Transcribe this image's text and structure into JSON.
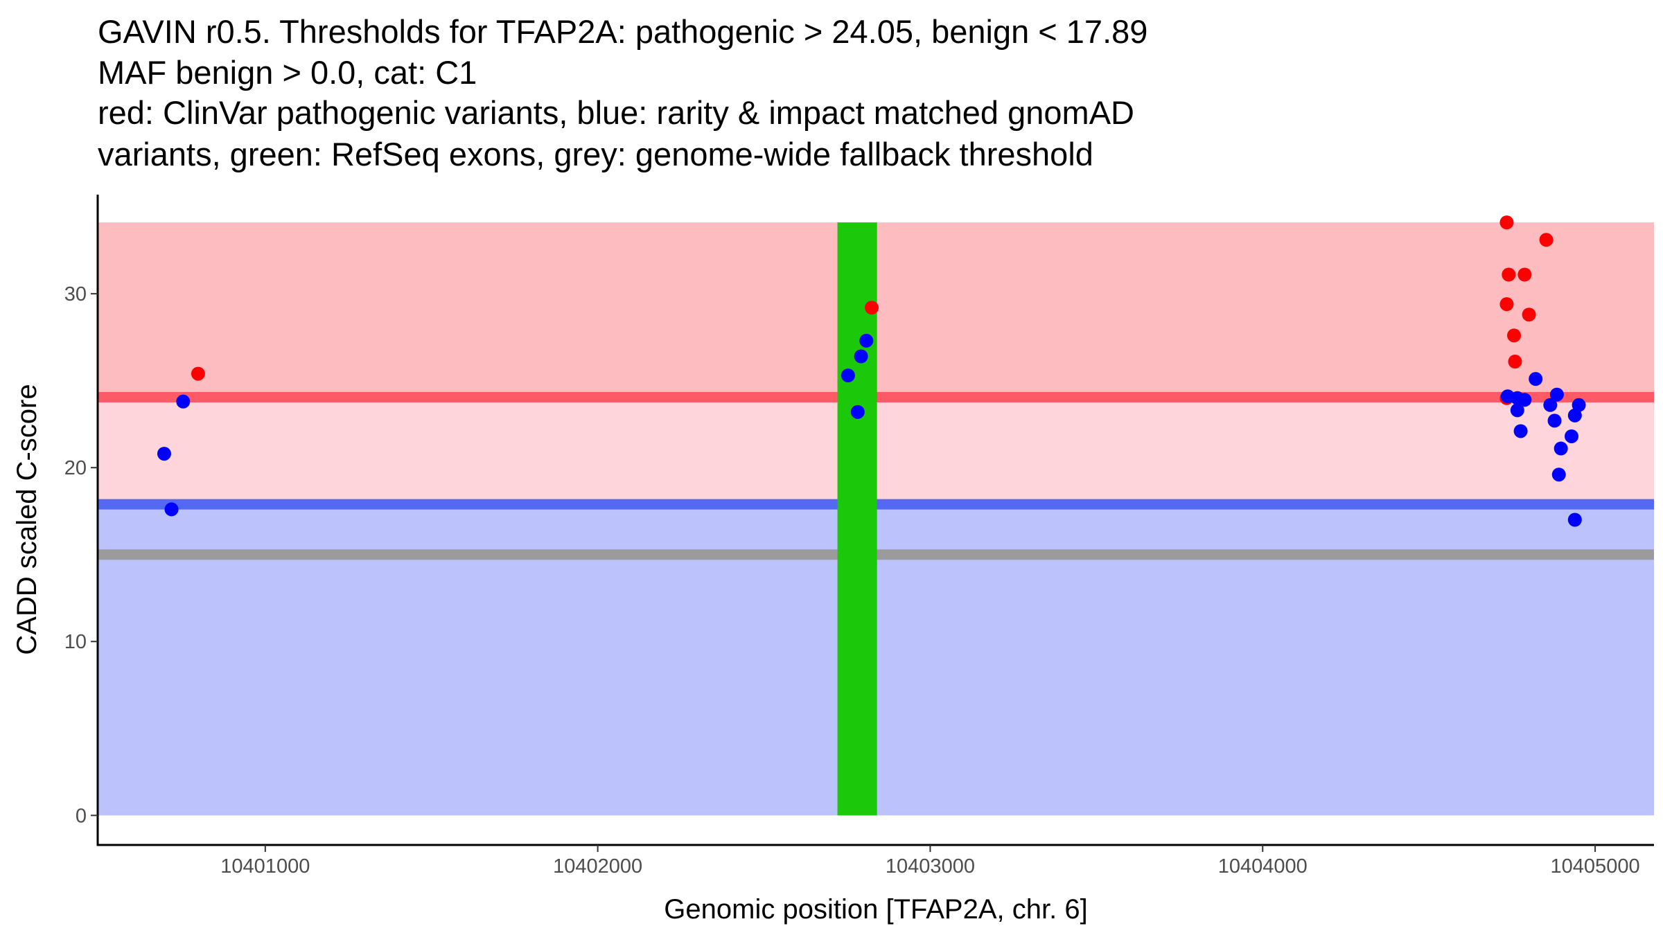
{
  "chart_data": {
    "type": "scatter",
    "title": [
      "GAVIN r0.5. Thresholds for TFAP2A: pathogenic > 24.05, benign < 17.89",
      "MAF benign > 0.0, cat: C1",
      "red: ClinVar pathogenic variants, blue: rarity & impact matched gnomAD",
      "variants, green: RefSeq exons, grey: genome-wide fallback threshold"
    ],
    "xlabel": "Genomic position [TFAP2A, chr. 6]",
    "ylabel": "CADD scaled C-score",
    "xlim": [
      10400496,
      10405177
    ],
    "ylim": [
      -1.7,
      35.7
    ],
    "xticks": [
      10401000,
      10402000,
      10403000,
      10404000,
      10405000
    ],
    "xtick_labels": [
      "10401000",
      "10402000",
      "10403000",
      "10404000",
      "10405000"
    ],
    "yticks": [
      0,
      10,
      20,
      30
    ],
    "ytick_labels": [
      "0",
      "10",
      "20",
      "30"
    ],
    "grid": false,
    "thresholds": {
      "pathogenic": 24.05,
      "benign": 17.89,
      "fallback": 15.0,
      "max": 34.1
    },
    "exons": [
      [
        10402721,
        10402840
      ]
    ],
    "colors": {
      "pathogenic_band": "#fdbcc0",
      "mid_band": "#fdd5da",
      "benign_band": "#bcc2fb",
      "pathogenic_line": "#fc5a67",
      "benign_line": "#5468f2",
      "fallback_line": "#9b9b9b",
      "exon": "#1bc80a",
      "red_point": "#ff0000",
      "blue_point": "#0000ff"
    },
    "series": [
      {
        "name": "ClinVar pathogenic",
        "color": "red",
        "points": [
          [
            10400798,
            25.4
          ],
          [
            10402824,
            29.2
          ],
          [
            10404734,
            34.1
          ],
          [
            10404740,
            31.1
          ],
          [
            10404734,
            29.4
          ],
          [
            10404788,
            31.1
          ],
          [
            10404801,
            28.8
          ],
          [
            10404756,
            27.6
          ],
          [
            10404853,
            33.1
          ],
          [
            10404759,
            26.1
          ],
          [
            10404734,
            24.0
          ]
        ]
      },
      {
        "name": "gnomAD matched",
        "color": "blue",
        "points": [
          [
            10400696,
            20.8
          ],
          [
            10400718,
            17.6
          ],
          [
            10400753,
            23.8
          ],
          [
            10402753,
            25.3
          ],
          [
            10402792,
            26.4
          ],
          [
            10402808,
            27.3
          ],
          [
            10402782,
            23.2
          ],
          [
            10404737,
            24.1
          ],
          [
            10404766,
            24.0
          ],
          [
            10404788,
            23.9
          ],
          [
            10404766,
            23.3
          ],
          [
            10404776,
            22.1
          ],
          [
            10404821,
            25.1
          ],
          [
            10404885,
            24.2
          ],
          [
            10404865,
            23.6
          ],
          [
            10404878,
            22.7
          ],
          [
            10404897,
            21.1
          ],
          [
            10404891,
            19.6
          ],
          [
            10404929,
            21.8
          ],
          [
            10404939,
            23.0
          ],
          [
            10404951,
            23.6
          ],
          [
            10404939,
            17.0
          ]
        ]
      }
    ]
  }
}
